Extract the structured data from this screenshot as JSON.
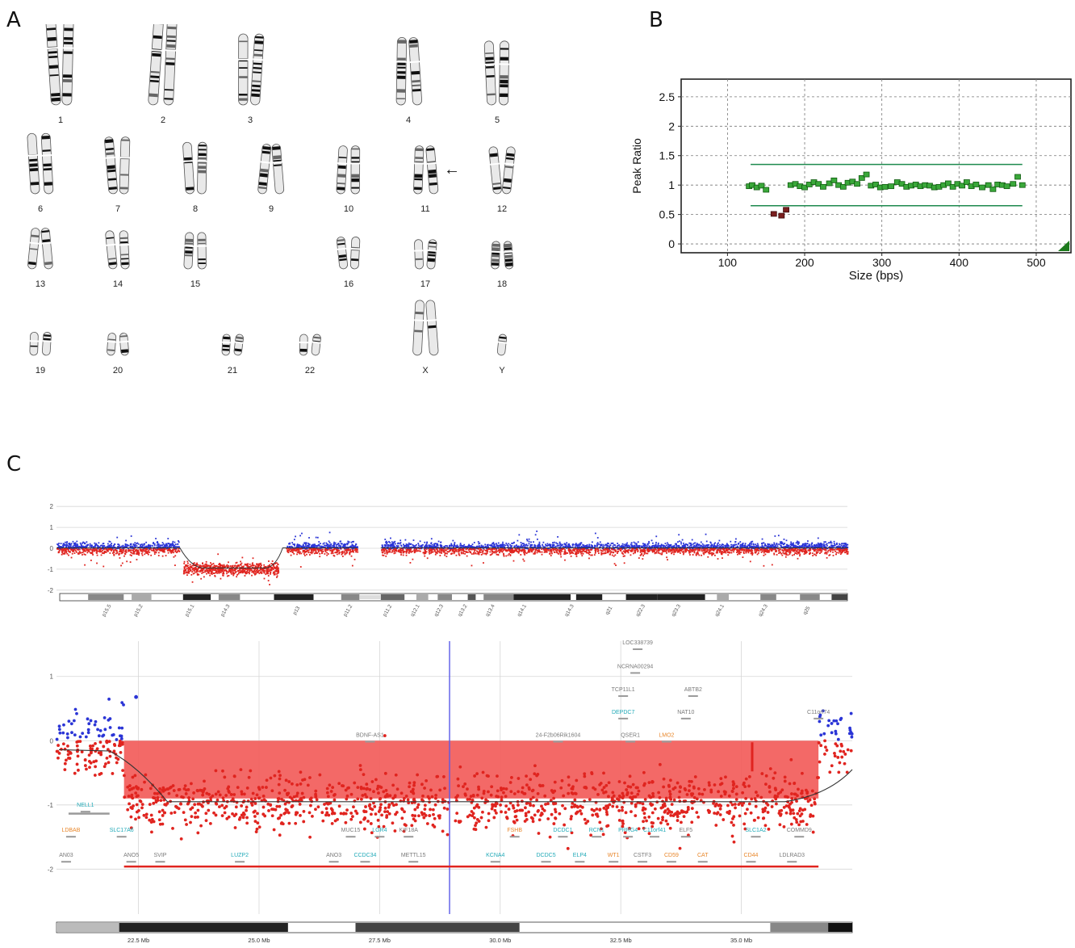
{
  "panels": {
    "a": "A",
    "b": "B",
    "c": "C"
  },
  "karyotype": {
    "arrow_glyph": "←",
    "chromosomes": [
      {
        "label": "1",
        "size": 1.0
      },
      {
        "label": "2",
        "size": 0.96
      },
      {
        "label": "3",
        "size": 0.8
      },
      {
        "label": "4",
        "size": 0.76
      },
      {
        "label": "5",
        "size": 0.72
      },
      {
        "label": "6",
        "size": 0.68
      },
      {
        "label": "7",
        "size": 0.64
      },
      {
        "label": "8",
        "size": 0.58
      },
      {
        "label": "9",
        "size": 0.56
      },
      {
        "label": "10",
        "size": 0.54
      },
      {
        "label": "11",
        "size": 0.54
      },
      {
        "label": "12",
        "size": 0.53
      },
      {
        "label": "13",
        "size": 0.46
      },
      {
        "label": "14",
        "size": 0.43
      },
      {
        "label": "15",
        "size": 0.41
      },
      {
        "label": "16",
        "size": 0.36
      },
      {
        "label": "17",
        "size": 0.33
      },
      {
        "label": "18",
        "size": 0.31
      },
      {
        "label": "19",
        "size": 0.26
      },
      {
        "label": "20",
        "size": 0.25
      },
      {
        "label": "21",
        "size": 0.18
      },
      {
        "label": "22",
        "size": 0.19
      },
      {
        "label": "X",
        "size": 0.62
      },
      {
        "label": "Y",
        "size": 0.2
      }
    ]
  },
  "fragment_chart": {
    "ylabel": "Peak Ratio",
    "xlabel": "Size (bps)",
    "xticks": [
      "100",
      "200",
      "300",
      "400",
      "500"
    ],
    "yticks": [
      "0",
      "0.5",
      "1",
      "1.5",
      "2",
      "2.5"
    ],
    "colors": {
      "normal": "#3aa83a",
      "deleted": "#7a1e1e",
      "band": "#1d8a4e"
    }
  },
  "chart_data": [
    {
      "type": "scatter",
      "xlabel": "Size (bps)",
      "ylabel": "Peak Ratio",
      "xlim": [
        40,
        545
      ],
      "ylim": [
        -0.15,
        2.8
      ],
      "reference_lines": [
        1.35,
        0.65
      ],
      "grid": true,
      "series": [
        {
          "x": [
            128,
            132,
            138,
            144,
            150,
            182,
            188,
            194,
            200,
            206,
            212,
            218,
            224,
            232,
            238,
            244,
            250,
            256,
            262,
            268,
            274,
            280,
            286,
            292,
            298,
            304,
            312,
            320,
            326,
            332,
            338,
            344,
            350,
            356,
            362,
            368,
            374,
            380,
            386,
            392,
            398,
            404,
            410,
            416,
            422,
            430,
            438,
            444,
            450,
            456,
            462,
            470,
            476,
            482
          ],
          "y": [
            0.98,
            1.0,
            0.96,
            0.99,
            0.92,
            1.0,
            1.02,
            0.98,
            0.96,
            1.01,
            1.05,
            1.02,
            0.97,
            1.03,
            1.08,
            1.0,
            0.97,
            1.04,
            1.06,
            1.02,
            1.12,
            1.18,
            0.99,
            1.01,
            0.96,
            0.97,
            0.98,
            1.05,
            1.02,
            0.97,
            0.99,
            1.01,
            0.98,
            1.0,
            0.99,
            0.96,
            0.97,
            1.0,
            1.03,
            0.97,
            1.02,
            0.99,
            1.05,
            0.98,
            1.01,
            0.96,
            1.0,
            0.93,
            1.01,
            1.0,
            0.98,
            1.02,
            1.14,
            1.0
          ]
        },
        {
          "x": [
            160,
            170,
            176
          ],
          "y": [
            0.51,
            0.48,
            0.58
          ]
        }
      ]
    },
    {
      "type": "scatter",
      "ylabel": "",
      "xlim": [
        0,
        100
      ],
      "ylim": [
        -2.2,
        2.2
      ],
      "regions": [
        {
          "x0": 16.0,
          "x1": 28.0,
          "mean": -0.96
        },
        {
          "x0": 0.0,
          "x1": 15.5,
          "mean": 0.02
        },
        {
          "x0": 29.0,
          "x1": 38.0,
          "mean": 0.02
        },
        {
          "x0": 41.0,
          "x1": 100.0,
          "mean": 0.02
        }
      ]
    },
    {
      "type": "scatter",
      "xlabel": "",
      "xlim": [
        20.8,
        37.3
      ],
      "ylim": [
        -2.7,
        1.55
      ],
      "xticks": [
        22.5,
        25.0,
        27.5,
        30.0,
        32.5,
        35.0
      ],
      "deletion_segment": {
        "x0": 22.2,
        "x1": 36.6,
        "y": -0.9
      }
    }
  ],
  "cnv_chart": {
    "overview": {
      "yticks": [
        "2",
        "1",
        "0",
        "-1",
        "-2"
      ],
      "bands": [
        "p15.5",
        "p15.2",
        "p15.1",
        "p14.3",
        "p13",
        "p11.2",
        "p11.2",
        "q12.1",
        "q12.3",
        "q13.2",
        "q13.4",
        "q14.1",
        "q14.3",
        "q21",
        "q22.3",
        "q23.3",
        "q24.1",
        "q24.3",
        "q25"
      ]
    },
    "detail": {
      "yticks": [
        "1",
        "0",
        "-1",
        "-2"
      ],
      "xticks": [
        "22.5 Mb",
        "25.0 Mb",
        "27.5 Mb",
        "30.0 Mb",
        "32.5 Mb",
        "35.0 Mb"
      ],
      "colors": {
        "gain": "#2b35d6",
        "loss": "#e0241f",
        "deletion_fill": "#f25c5a",
        "cursor": "#5a5ae8"
      },
      "genes": [
        {
          "name": "LOC338739",
          "x": 32.85,
          "y": 1.5,
          "color": "gray"
        },
        {
          "name": "NCRNA00294",
          "x": 32.8,
          "y": 1.13,
          "color": "gray"
        },
        {
          "name": "TCP11L1",
          "x": 32.55,
          "y": 0.77,
          "color": "gray"
        },
        {
          "name": "ABTB2",
          "x": 34.0,
          "y": 0.77,
          "color": "gray"
        },
        {
          "name": "DEPDC7",
          "x": 32.55,
          "y": 0.42,
          "color": "cyan"
        },
        {
          "name": "NAT10",
          "x": 33.85,
          "y": 0.42,
          "color": "gray"
        },
        {
          "name": "C11orf74",
          "x": 36.6,
          "y": 0.42,
          "color": "gray"
        },
        {
          "name": "BDNF-AS1",
          "x": 27.3,
          "y": 0.06,
          "color": "gray"
        },
        {
          "name": "24-F2b06Rik1604",
          "x": 31.2,
          "y": 0.06,
          "color": "gray"
        },
        {
          "name": "QSER1",
          "x": 32.7,
          "y": 0.06,
          "color": "gray"
        },
        {
          "name": "LMO2",
          "x": 33.45,
          "y": 0.06,
          "color": "orange"
        },
        {
          "name": "NELL1",
          "x": 21.4,
          "y": -1.03,
          "color": "cyan"
        },
        {
          "name": "LDBAB",
          "x": 21.1,
          "y": -1.42,
          "color": "orange"
        },
        {
          "name": "SLC17A6",
          "x": 22.15,
          "y": -1.42,
          "color": "cyan"
        },
        {
          "name": "MUC15",
          "x": 26.9,
          "y": -1.42,
          "color": "gray"
        },
        {
          "name": "LGR4",
          "x": 27.5,
          "y": -1.42,
          "color": "cyan"
        },
        {
          "name": "KIF18A",
          "x": 28.1,
          "y": -1.42,
          "color": "gray"
        },
        {
          "name": "FSHB",
          "x": 30.3,
          "y": -1.42,
          "color": "orange"
        },
        {
          "name": "DCDC1",
          "x": 31.3,
          "y": -1.42,
          "color": "cyan"
        },
        {
          "name": "RCN1",
          "x": 32.0,
          "y": -1.42,
          "color": "cyan"
        },
        {
          "name": "PRRG4",
          "x": 32.65,
          "y": -1.42,
          "color": "cyan"
        },
        {
          "name": "C11orf41",
          "x": 33.2,
          "y": -1.42,
          "color": "cyan"
        },
        {
          "name": "ELF5",
          "x": 33.85,
          "y": -1.42,
          "color": "gray"
        },
        {
          "name": "SLC1A2",
          "x": 35.3,
          "y": -1.42,
          "color": "cyan"
        },
        {
          "name": "COMMD9",
          "x": 36.2,
          "y": -1.42,
          "color": "gray"
        },
        {
          "name": "AN03",
          "x": 21.0,
          "y": -1.81,
          "color": "gray"
        },
        {
          "name": "ANO5",
          "x": 22.35,
          "y": -1.81,
          "color": "gray"
        },
        {
          "name": "SVIP",
          "x": 22.95,
          "y": -1.81,
          "color": "gray"
        },
        {
          "name": "LUZP2",
          "x": 24.6,
          "y": -1.81,
          "color": "cyan"
        },
        {
          "name": "ANO3",
          "x": 26.55,
          "y": -1.81,
          "color": "gray"
        },
        {
          "name": "CCDC34",
          "x": 27.2,
          "y": -1.81,
          "color": "cyan"
        },
        {
          "name": "METTL15",
          "x": 28.2,
          "y": -1.81,
          "color": "gray"
        },
        {
          "name": "KCNA4",
          "x": 29.9,
          "y": -1.81,
          "color": "cyan"
        },
        {
          "name": "DCDC5",
          "x": 30.95,
          "y": -1.81,
          "color": "cyan"
        },
        {
          "name": "ELP4",
          "x": 31.65,
          "y": -1.81,
          "color": "cyan"
        },
        {
          "name": "WT1",
          "x": 32.35,
          "y": -1.81,
          "color": "orange"
        },
        {
          "name": "CSTF3",
          "x": 32.95,
          "y": -1.81,
          "color": "gray"
        },
        {
          "name": "CD59",
          "x": 33.55,
          "y": -1.81,
          "color": "orange"
        },
        {
          "name": "CAT",
          "x": 34.2,
          "y": -1.81,
          "color": "orange"
        },
        {
          "name": "CD44",
          "x": 35.2,
          "y": -1.81,
          "color": "orange"
        },
        {
          "name": "LDLRAD3",
          "x": 36.05,
          "y": -1.81,
          "color": "gray"
        }
      ]
    }
  }
}
